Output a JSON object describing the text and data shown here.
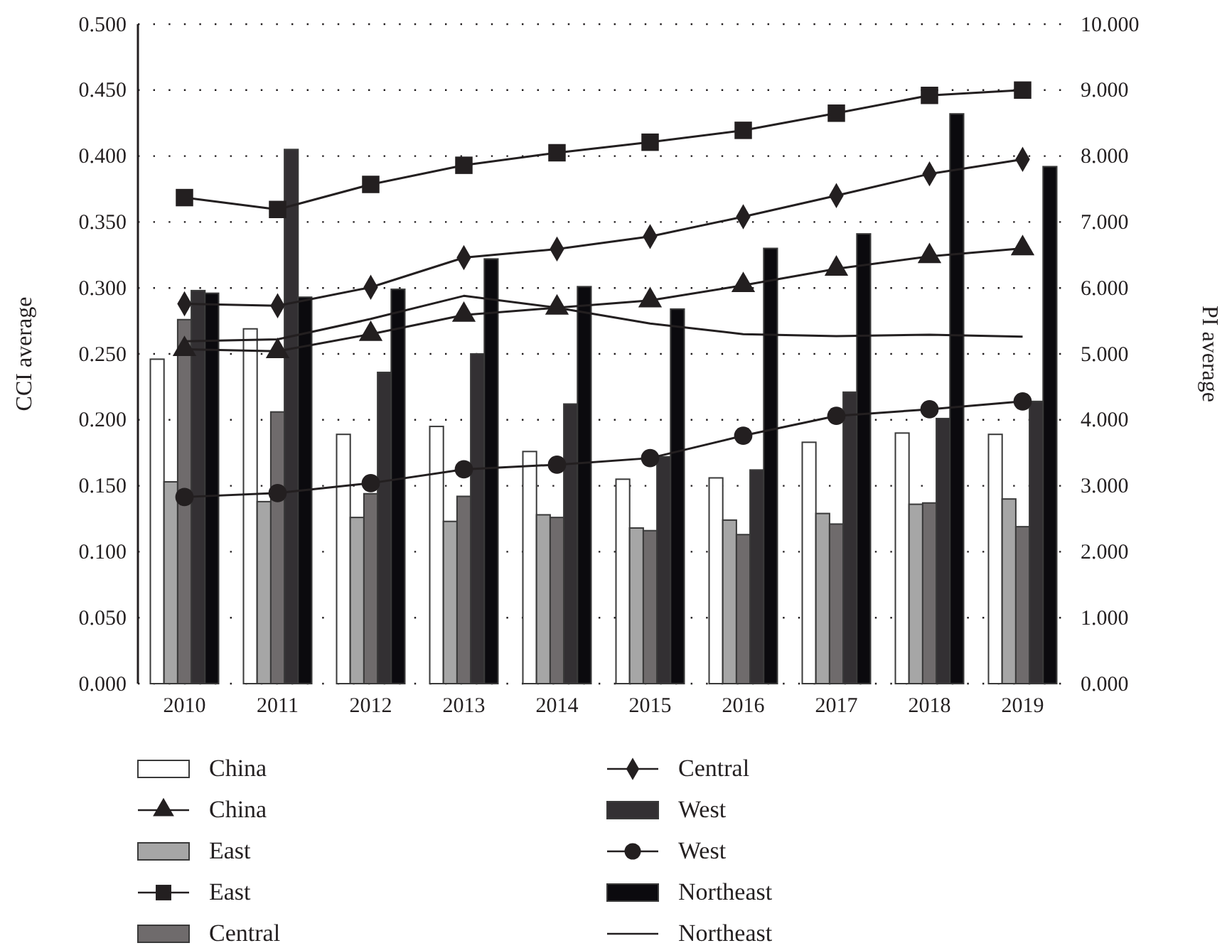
{
  "chart_data": {
    "type": "bar",
    "ylabel": "CCI average",
    "y2label": "PI average",
    "categories": [
      "2010",
      "2011",
      "2012",
      "2013",
      "2014",
      "2015",
      "2016",
      "2017",
      "2018",
      "2019"
    ],
    "series": [
      {
        "name": "China",
        "color": "#ffffff",
        "values": [
          0.246,
          0.269,
          0.189,
          0.195,
          0.176,
          0.155,
          0.156,
          0.183,
          0.19,
          0.189
        ]
      },
      {
        "name": "China",
        "type": "line",
        "axis": "y2",
        "color": "#231f20",
        "marker": "triangle",
        "values": [
          5.07,
          5.04,
          5.3,
          5.59,
          5.7,
          5.81,
          6.04,
          6.29,
          6.48,
          6.6
        ]
      },
      {
        "name": "East",
        "color": "#a6a6a6",
        "values": [
          0.153,
          0.138,
          0.126,
          0.123,
          0.128,
          0.118,
          0.124,
          0.129,
          0.136,
          0.14
        ]
      },
      {
        "name": "East",
        "type": "line",
        "axis": "y2",
        "color": "#231f20",
        "marker": "square",
        "values": [
          7.37,
          7.19,
          7.57,
          7.86,
          8.05,
          8.21,
          8.39,
          8.65,
          8.92,
          9.0
        ]
      },
      {
        "name": "Central",
        "color": "#6f6b6c",
        "values": [
          0.276,
          0.206,
          0.144,
          0.142,
          0.126,
          0.116,
          0.113,
          0.121,
          0.137,
          0.119
        ]
      },
      {
        "name": "Central",
        "type": "line",
        "axis": "y2",
        "color": "#231f20",
        "marker": "diamond",
        "values": [
          5.76,
          5.73,
          6.01,
          6.46,
          6.59,
          6.78,
          7.08,
          7.4,
          7.73,
          7.95
        ]
      },
      {
        "name": "West",
        "color": "#333033",
        "values": [
          0.298,
          0.405,
          0.236,
          0.25,
          0.212,
          0.172,
          0.162,
          0.221,
          0.201,
          0.214
        ]
      },
      {
        "name": "West",
        "type": "line",
        "axis": "y2",
        "color": "#231f20",
        "marker": "circle",
        "values": [
          2.83,
          2.89,
          3.04,
          3.25,
          3.32,
          3.42,
          3.76,
          4.06,
          4.16,
          4.28
        ]
      },
      {
        "name": "Northeast",
        "color": "#0b0a0e",
        "values": [
          0.296,
          0.293,
          0.299,
          0.322,
          0.301,
          0.284,
          0.33,
          0.341,
          0.432,
          0.392
        ]
      },
      {
        "name": "Northeast",
        "type": "line",
        "axis": "y2",
        "color": "#231f20",
        "marker": "none",
        "values": [
          5.19,
          5.22,
          5.53,
          5.88,
          5.7,
          5.46,
          5.3,
          5.27,
          5.29,
          5.26
        ]
      }
    ],
    "ylim": [
      0,
      0.5
    ],
    "yticks": [
      {
        "value": 0,
        "label": "0.000"
      },
      {
        "value": 0.05,
        "label": "0.050"
      },
      {
        "value": 0.1,
        "label": "0.100"
      },
      {
        "value": 0.15,
        "label": "0.150"
      },
      {
        "value": 0.2,
        "label": "0.200"
      },
      {
        "value": 0.25,
        "label": "0.250"
      },
      {
        "value": 0.3,
        "label": "0.300"
      },
      {
        "value": 0.35,
        "label": "0.350"
      },
      {
        "value": 0.4,
        "label": "0.400"
      },
      {
        "value": 0.45,
        "label": "0.450"
      },
      {
        "value": 0.5,
        "label": "0.500"
      }
    ],
    "y2lim": [
      0,
      10
    ],
    "y2ticks": [
      {
        "value": 0,
        "label": "0.000"
      },
      {
        "value": 1,
        "label": "1.000"
      },
      {
        "value": 2,
        "label": "2.000"
      },
      {
        "value": 3,
        "label": "3.000"
      },
      {
        "value": 4,
        "label": "4.000"
      },
      {
        "value": 5,
        "label": "5.000"
      },
      {
        "value": 6,
        "label": "6.000"
      },
      {
        "value": 7,
        "label": "7.000"
      },
      {
        "value": 8,
        "label": "8.000"
      },
      {
        "value": 9,
        "label": "9.000"
      },
      {
        "value": 10,
        "label": "10.000"
      }
    ],
    "grid": "y",
    "line_style": "solid",
    "legend": "bottom"
  }
}
